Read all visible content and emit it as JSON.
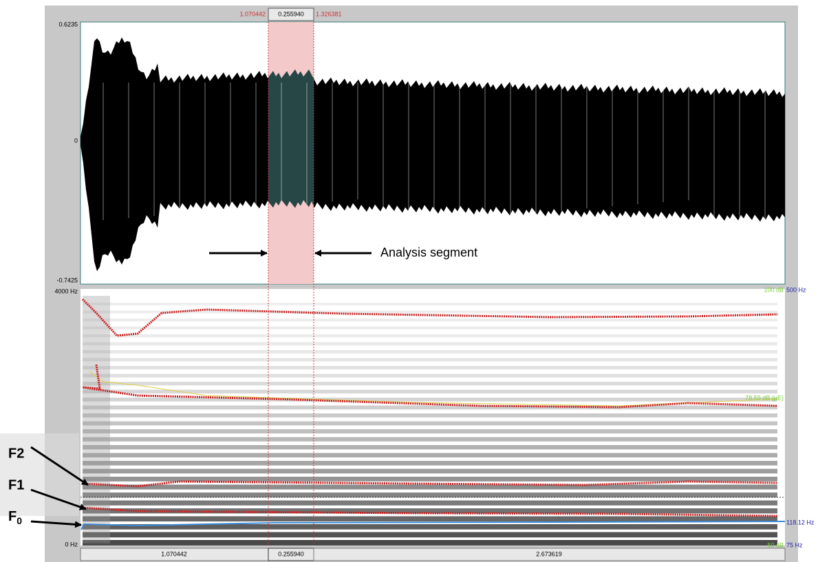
{
  "selection_bar": {
    "start": "1.070442",
    "duration": "0.255940",
    "end": "1.326381"
  },
  "waveform": {
    "max": "0.6235",
    "zero": "0",
    "min": "-0.7425"
  },
  "spectrogram": {
    "top_freq": "4000 Hz",
    "bottom_freq": "0 Hz",
    "right_labels": {
      "intensity_max": "100 dB",
      "pitch_max": "500 Hz",
      "intensity_value": "78.59 dB (µE)",
      "pitch_value": "118.12 Hz",
      "intensity_min": "50 dB",
      "pitch_min": "75 Hz"
    }
  },
  "time_bar": {
    "before": "1.070442",
    "selection": "0.255940",
    "after": "2.673619"
  },
  "annotations": {
    "segment": "Analysis segment",
    "f2": "F2",
    "f1": "F1",
    "f0": {
      "base": "F",
      "subscript": "0"
    }
  }
}
